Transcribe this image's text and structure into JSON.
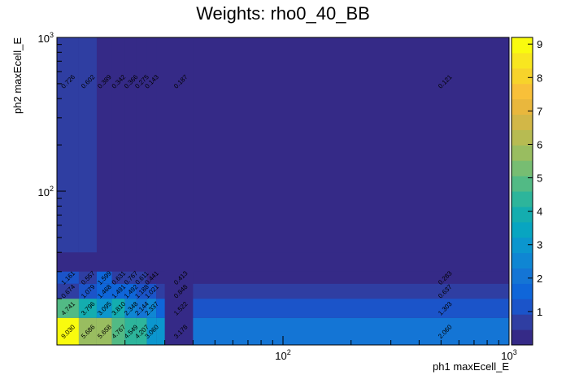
{
  "chart_data": {
    "type": "heatmap",
    "title": "Weights: rho0_40_BB",
    "xlabel": "ph1 maxEcell_E",
    "ylabel": "ph2 maxEcell_E",
    "x_scale": "log",
    "y_scale": "log",
    "xlim": [
      10,
      1000
    ],
    "ylim": [
      10,
      1000
    ],
    "x_tick_labels": [
      "10^{2}",
      "10^{3}"
    ],
    "y_tick_labels": [
      "10^{2}",
      "10^{3}"
    ],
    "zlim": [
      0,
      9.2
    ],
    "z_tick_labels": [
      "1",
      "2",
      "3",
      "4",
      "5",
      "6",
      "7",
      "8",
      "9"
    ],
    "x_bin_edges": [
      10,
      12.5,
      15,
      17.5,
      20,
      22.5,
      25,
      27.5,
      30,
      40,
      1000
    ],
    "y_bin_edges": [
      10,
      15,
      20,
      25,
      30,
      40,
      1000
    ],
    "cells": [
      {
        "ix": 0,
        "iy": 0,
        "value": 9.03,
        "label": "9.030"
      },
      {
        "ix": 1,
        "iy": 0,
        "value": 5.686,
        "label": "5.686"
      },
      {
        "ix": 2,
        "iy": 0,
        "value": 5.658,
        "label": "5.658"
      },
      {
        "ix": 3,
        "iy": 0,
        "value": 4.767,
        "label": "4.767"
      },
      {
        "ix": 4,
        "iy": 0,
        "value": 4.549,
        "label": "4.549"
      },
      {
        "ix": 5,
        "iy": 0,
        "value": 4.207,
        "label": "4.207"
      },
      {
        "ix": 6,
        "iy": 0,
        "value": 3.06,
        "label": "3.060"
      },
      {
        "ix": 7,
        "iy": 0,
        "value": 3.178,
        "label": "3.178"
      },
      {
        "ix": 9,
        "iy": 0,
        "value": 2.06,
        "label": "2.060"
      },
      {
        "ix": 0,
        "iy": 1,
        "value": 4.741,
        "label": "4.741"
      },
      {
        "ix": 1,
        "iy": 1,
        "value": 3.796,
        "label": "3.796"
      },
      {
        "ix": 2,
        "iy": 1,
        "value": 3.095,
        "label": "3.095"
      },
      {
        "ix": 3,
        "iy": 1,
        "value": 3.81,
        "label": "3.810"
      },
      {
        "ix": 4,
        "iy": 1,
        "value": 2.348,
        "label": "2.348"
      },
      {
        "ix": 5,
        "iy": 1,
        "value": 2.144,
        "label": "2.144"
      },
      {
        "ix": 6,
        "iy": 1,
        "value": 2.337,
        "label": "2.337"
      },
      {
        "ix": 7,
        "iy": 1,
        "value": 1.522,
        "label": "1.522"
      },
      {
        "ix": 9,
        "iy": 1,
        "value": 1.303,
        "label": "1.303"
      },
      {
        "ix": 0,
        "iy": 2,
        "value": 0.674,
        "label": "0.674"
      },
      {
        "ix": 1,
        "iy": 2,
        "value": 1.079,
        "label": "1.079"
      },
      {
        "ix": 2,
        "iy": 2,
        "value": 1.468,
        "label": "1.468"
      },
      {
        "ix": 3,
        "iy": 2,
        "value": 1.491,
        "label": "1.491"
      },
      {
        "ix": 4,
        "iy": 2,
        "value": 1.492,
        "label": "1.492"
      },
      {
        "ix": 5,
        "iy": 2,
        "value": 1.188,
        "label": "1.188"
      },
      {
        "ix": 6,
        "iy": 2,
        "value": 1.021,
        "label": "1.021"
      },
      {
        "ix": 7,
        "iy": 2,
        "value": 0.848,
        "label": "0.848"
      },
      {
        "ix": 9,
        "iy": 2,
        "value": 0.637,
        "label": "0.637"
      },
      {
        "ix": 0,
        "iy": 3,
        "value": 1.161,
        "label": "1.161"
      },
      {
        "ix": 1,
        "iy": 3,
        "value": 0.557,
        "label": "0.557"
      },
      {
        "ix": 2,
        "iy": 3,
        "value": 1.599,
        "label": "1.599"
      },
      {
        "ix": 3,
        "iy": 3,
        "value": 0.631,
        "label": "0.631"
      },
      {
        "ix": 4,
        "iy": 3,
        "value": 0.767,
        "label": "0.767"
      },
      {
        "ix": 5,
        "iy": 3,
        "value": 0.611,
        "label": "0.611"
      },
      {
        "ix": 6,
        "iy": 3,
        "value": 0.441,
        "label": "0.441"
      },
      {
        "ix": 7,
        "iy": 3,
        "value": 0.413,
        "label": "0.413"
      },
      {
        "ix": 9,
        "iy": 3,
        "value": 0.283,
        "label": "0.283"
      },
      {
        "ix": 0,
        "iy": 5,
        "value": 0.726,
        "label": "0.726"
      },
      {
        "ix": 1,
        "iy": 5,
        "value": 0.602,
        "label": "0.602"
      },
      {
        "ix": 2,
        "iy": 5,
        "value": 0.389,
        "label": "0.389"
      },
      {
        "ix": 3,
        "iy": 5,
        "value": 0.342,
        "label": "0.342"
      },
      {
        "ix": 4,
        "iy": 5,
        "value": 0.366,
        "label": "0.366"
      },
      {
        "ix": 5,
        "iy": 5,
        "value": 0.275,
        "label": "0.275"
      },
      {
        "ix": 6,
        "iy": 5,
        "value": 0.143,
        "label": "0.143"
      },
      {
        "ix": 7,
        "iy": 5,
        "value": 0.187,
        "label": "0.187"
      },
      {
        "ix": 9,
        "iy": 5,
        "value": 0.121,
        "label": "0.121"
      }
    ],
    "legend_placement": "right colorbar",
    "grid": false
  },
  "colors": {
    "palette": [
      "#352a87",
      "#2f3ea2",
      "#1b54c9",
      "#0f66d9",
      "#1475d5",
      "#0f86d3",
      "#0b96ce",
      "#08a5c1",
      "#14adaf",
      "#2db59b",
      "#52ba85",
      "#77bd72",
      "#99bd60",
      "#b7bb52",
      "#d2b747",
      "#e9b73d",
      "#f8c039",
      "#f7d32b",
      "#f8e620",
      "#f9fb0e"
    ],
    "empty_bin": "#352a87"
  }
}
